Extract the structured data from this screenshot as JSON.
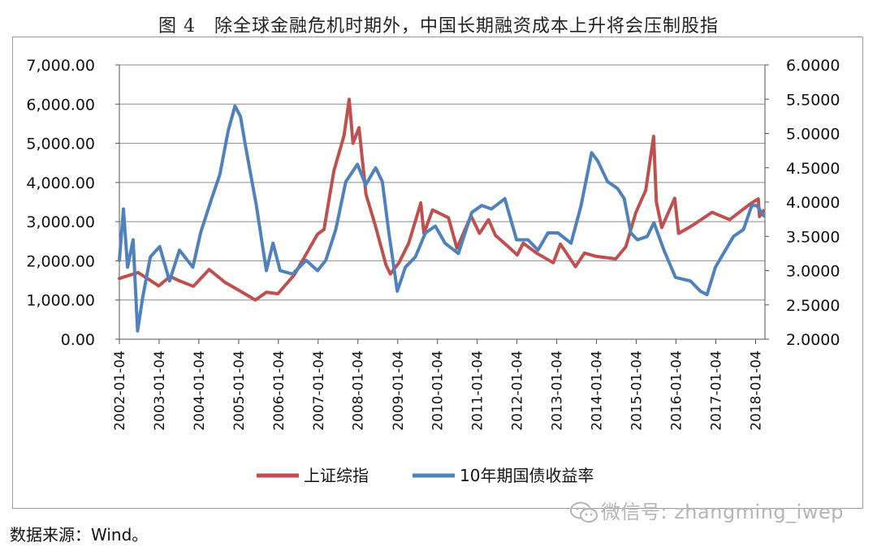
{
  "title": "图 4　除全球金融危机时期外，中国长期融资成本上升将会压制股指",
  "source": "数据来源：Wind。",
  "watermark": "微信号: zhangming_iwep",
  "chart_data": {
    "type": "line",
    "xlabel": "",
    "ylabel_left": "",
    "ylabel_right": "",
    "y_left_ticks": [
      "0.00",
      "1,000.00",
      "2,000.00",
      "3,000.00",
      "4,000.00",
      "5,000.00",
      "6,000.00",
      "7,000.00"
    ],
    "y_right_ticks": [
      "2.0000",
      "2.5000",
      "3.0000",
      "3.5000",
      "4.0000",
      "4.5000",
      "5.0000",
      "5.5000",
      "6.0000"
    ],
    "ylim_left": [
      0,
      7000
    ],
    "ylim_right": [
      2.0,
      6.0
    ],
    "x_ticks": [
      "2002-01-04",
      "2003-01-04",
      "2004-01-04",
      "2005-01-04",
      "2006-01-04",
      "2007-01-04",
      "2008-01-04",
      "2009-01-04",
      "2010-01-04",
      "2011-01-04",
      "2012-01-04",
      "2013-01-04",
      "2014-01-04",
      "2015-01-04",
      "2016-01-04",
      "2017-01-04",
      "2018-01-04"
    ],
    "xlim": [
      "2002-01-04",
      "2018-03-31"
    ],
    "legend_position": "bottom",
    "series": [
      {
        "name": "上证综指",
        "axis": "left",
        "color": "#c0504d",
        "points": [
          [
            "2002-01-04",
            1550
          ],
          [
            "2002-03-01",
            1600
          ],
          [
            "2002-06-25",
            1700
          ],
          [
            "2002-09-01",
            1580
          ],
          [
            "2002-12-31",
            1360
          ],
          [
            "2003-04-15",
            1600
          ],
          [
            "2003-07-01",
            1500
          ],
          [
            "2003-11-15",
            1350
          ],
          [
            "2004-04-07",
            1780
          ],
          [
            "2004-09-01",
            1450
          ],
          [
            "2004-12-31",
            1260
          ],
          [
            "2005-06-06",
            1000
          ],
          [
            "2005-09-15",
            1200
          ],
          [
            "2005-12-30",
            1160
          ],
          [
            "2006-06-01",
            1650
          ],
          [
            "2006-12-29",
            2680
          ],
          [
            "2007-02-27",
            2800
          ],
          [
            "2007-05-29",
            4300
          ],
          [
            "2007-08-30",
            5200
          ],
          [
            "2007-10-16",
            6124
          ],
          [
            "2007-11-20",
            5000
          ],
          [
            "2008-01-14",
            5400
          ],
          [
            "2008-03-18",
            3700
          ],
          [
            "2008-06-12",
            2900
          ],
          [
            "2008-09-18",
            1900
          ],
          [
            "2008-10-28",
            1665
          ],
          [
            "2009-01-15",
            1950
          ],
          [
            "2009-04-15",
            2450
          ],
          [
            "2009-08-04",
            3478
          ],
          [
            "2009-09-01",
            2700
          ],
          [
            "2009-11-20",
            3300
          ],
          [
            "2010-04-15",
            3100
          ],
          [
            "2010-07-02",
            2320
          ],
          [
            "2010-11-08",
            3150
          ],
          [
            "2011-01-25",
            2700
          ],
          [
            "2011-04-18",
            3050
          ],
          [
            "2011-06-20",
            2650
          ],
          [
            "2011-10-21",
            2350
          ],
          [
            "2012-01-06",
            2150
          ],
          [
            "2012-03-02",
            2450
          ],
          [
            "2012-07-01",
            2200
          ],
          [
            "2012-12-03",
            1950
          ],
          [
            "2013-02-06",
            2430
          ],
          [
            "2013-06-25",
            1850
          ],
          [
            "2013-09-15",
            2200
          ],
          [
            "2013-12-31",
            2115
          ],
          [
            "2014-06-30",
            2050
          ],
          [
            "2014-09-30",
            2360
          ],
          [
            "2014-12-31",
            3230
          ],
          [
            "2015-04-01",
            3800
          ],
          [
            "2015-06-12",
            5178
          ],
          [
            "2015-07-08",
            3500
          ],
          [
            "2015-08-26",
            2850
          ],
          [
            "2015-12-23",
            3600
          ],
          [
            "2016-01-28",
            2700
          ],
          [
            "2016-06-01",
            2900
          ],
          [
            "2016-12-01",
            3240
          ],
          [
            "2017-05-11",
            3050
          ],
          [
            "2017-11-14",
            3450
          ],
          [
            "2018-01-29",
            3580
          ],
          [
            "2018-02-09",
            3130
          ],
          [
            "2018-03-20",
            3280
          ]
        ]
      },
      {
        "name": "10年期国债收益率",
        "axis": "right",
        "color": "#4f81bd",
        "points": [
          [
            "2002-01-04",
            3.15
          ],
          [
            "2002-02-10",
            3.9
          ],
          [
            "2002-03-20",
            3.05
          ],
          [
            "2002-05-10",
            3.45
          ],
          [
            "2002-06-20",
            2.12
          ],
          [
            "2002-08-05",
            2.6
          ],
          [
            "2002-10-15",
            3.2
          ],
          [
            "2003-01-10",
            3.35
          ],
          [
            "2003-04-10",
            2.85
          ],
          [
            "2003-07-10",
            3.3
          ],
          [
            "2003-11-10",
            3.05
          ],
          [
            "2004-01-20",
            3.55
          ],
          [
            "2004-04-30",
            4.05
          ],
          [
            "2004-07-15",
            4.4
          ],
          [
            "2004-10-01",
            5.05
          ],
          [
            "2004-12-01",
            5.4
          ],
          [
            "2005-01-20",
            5.25
          ],
          [
            "2005-03-10",
            4.8
          ],
          [
            "2005-06-15",
            3.95
          ],
          [
            "2005-09-15",
            3.0
          ],
          [
            "2005-11-15",
            3.4
          ],
          [
            "2006-01-20",
            3.0
          ],
          [
            "2006-05-15",
            2.95
          ],
          [
            "2006-09-15",
            3.15
          ],
          [
            "2006-12-30",
            3.0
          ],
          [
            "2007-03-15",
            3.15
          ],
          [
            "2007-06-15",
            3.6
          ],
          [
            "2007-09-15",
            4.3
          ],
          [
            "2007-12-31",
            4.55
          ],
          [
            "2008-03-15",
            4.25
          ],
          [
            "2008-06-15",
            4.5
          ],
          [
            "2008-08-15",
            4.3
          ],
          [
            "2008-10-15",
            3.55
          ],
          [
            "2008-12-31",
            2.7
          ],
          [
            "2009-03-15",
            3.05
          ],
          [
            "2009-06-15",
            3.2
          ],
          [
            "2009-09-15",
            3.55
          ],
          [
            "2009-12-15",
            3.65
          ],
          [
            "2010-03-15",
            3.4
          ],
          [
            "2010-07-15",
            3.25
          ],
          [
            "2010-11-15",
            3.85
          ],
          [
            "2011-02-15",
            3.95
          ],
          [
            "2011-05-15",
            3.9
          ],
          [
            "2011-09-15",
            4.05
          ],
          [
            "2011-12-31",
            3.45
          ],
          [
            "2012-04-15",
            3.45
          ],
          [
            "2012-07-15",
            3.3
          ],
          [
            "2012-10-15",
            3.55
          ],
          [
            "2013-01-15",
            3.55
          ],
          [
            "2013-05-15",
            3.4
          ],
          [
            "2013-08-15",
            3.95
          ],
          [
            "2013-11-20",
            4.72
          ],
          [
            "2014-01-15",
            4.6
          ],
          [
            "2014-04-15",
            4.3
          ],
          [
            "2014-07-15",
            4.2
          ],
          [
            "2014-09-15",
            4.05
          ],
          [
            "2014-11-15",
            3.55
          ],
          [
            "2015-01-15",
            3.45
          ],
          [
            "2015-04-15",
            3.5
          ],
          [
            "2015-06-15",
            3.7
          ],
          [
            "2015-09-15",
            3.3
          ],
          [
            "2015-12-31",
            2.9
          ],
          [
            "2016-05-15",
            2.85
          ],
          [
            "2016-08-15",
            2.7
          ],
          [
            "2016-10-15",
            2.65
          ],
          [
            "2016-12-31",
            3.05
          ],
          [
            "2017-03-15",
            3.25
          ],
          [
            "2017-06-15",
            3.5
          ],
          [
            "2017-09-15",
            3.6
          ],
          [
            "2017-11-30",
            3.95
          ],
          [
            "2018-01-15",
            3.95
          ],
          [
            "2018-02-28",
            3.85
          ],
          [
            "2018-03-20",
            3.8
          ]
        ]
      }
    ]
  }
}
